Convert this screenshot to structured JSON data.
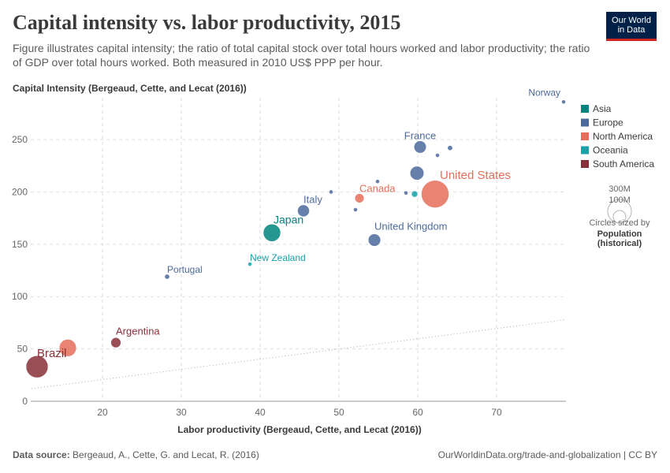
{
  "header": {
    "title": "Capital intensity vs. labor productivity, 2015",
    "subtitle": "Figure illustrates capital intensity; the ratio of total capital stock over total hours worked and labor productivity; the ratio of GDP over total hours worked. Both measured in 2010 US$ PPP per hour.",
    "logo_line1": "Our World",
    "logo_line2": "in Data"
  },
  "footer": {
    "source_label": "Data source:",
    "source_text": "Bergeaud, A., Cette, G. and Lecat, R. (2016)",
    "license": "OurWorldinData.org/trade-and-globalization | CC BY"
  },
  "chart_data": {
    "type": "scatter",
    "xlabel": "Labor productivity (Bergeaud, Cette, and Lecat (2016))",
    "ylabel": "Capital Intensity (Bergeaud, Cette, and Lecat (2016))",
    "xlim": [
      10.9,
      78.8
    ],
    "ylim": [
      0,
      290
    ],
    "xticks": [
      20,
      30,
      40,
      50,
      60,
      70
    ],
    "yticks": [
      0,
      50,
      100,
      150,
      200,
      250
    ],
    "grid": true,
    "legend_position": "right",
    "regions": [
      {
        "name": "Asia",
        "color": "#00847e"
      },
      {
        "name": "Europe",
        "color": "#4c6a9c"
      },
      {
        "name": "North America",
        "color": "#e56e5a"
      },
      {
        "name": "Oceania",
        "color": "#18a1a7"
      },
      {
        "name": "South America",
        "color": "#883039"
      }
    ],
    "size_legend": {
      "large_label": "300M",
      "small_label": "100M",
      "note": "Circles sized by",
      "bold_line1": "Population",
      "bold_line2": "(historical)"
    },
    "points": [
      {
        "label": "Norway",
        "x": 78.5,
        "y": 286,
        "pop": 5,
        "region": "Europe"
      },
      {
        "label": "France",
        "x": 60.3,
        "y": 243,
        "pop": 64,
        "region": "Europe"
      },
      {
        "label": "",
        "x": 64.1,
        "y": 242,
        "pop": 11,
        "region": "Europe"
      },
      {
        "label": "",
        "x": 62.5,
        "y": 235,
        "pop": 5,
        "region": "Europe"
      },
      {
        "label": "United States",
        "x": 62.2,
        "y": 198,
        "pop": 320,
        "region": "North America"
      },
      {
        "label": "",
        "x": 59.9,
        "y": 218,
        "pop": 81,
        "region": "Europe"
      },
      {
        "label": "",
        "x": 59.6,
        "y": 198,
        "pop": 17,
        "region": "Oceania"
      },
      {
        "label": "",
        "x": 58.5,
        "y": 199,
        "pop": 2,
        "region": "Europe"
      },
      {
        "label": "",
        "x": 54.9,
        "y": 210,
        "pop": 4,
        "region": "Europe"
      },
      {
        "label": "Canada",
        "x": 52.6,
        "y": 194,
        "pop": 36,
        "region": "North America"
      },
      {
        "label": "",
        "x": 49.0,
        "y": 200,
        "pop": 2,
        "region": "Europe"
      },
      {
        "label": "",
        "x": 52.1,
        "y": 183,
        "pop": 5,
        "region": "Europe"
      },
      {
        "label": "United Kingdom",
        "x": 54.5,
        "y": 154,
        "pop": 65,
        "region": "Europe"
      },
      {
        "label": "Italy",
        "x": 45.5,
        "y": 182,
        "pop": 60,
        "region": "Europe"
      },
      {
        "label": "Japan",
        "x": 41.5,
        "y": 161,
        "pop": 127,
        "region": "Asia"
      },
      {
        "label": "New Zealand",
        "x": 38.7,
        "y": 131,
        "pop": 4.6,
        "region": "Oceania"
      },
      {
        "label": "Portugal",
        "x": 28.2,
        "y": 119,
        "pop": 10.4,
        "region": "Europe"
      },
      {
        "label": "Argentina",
        "x": 21.7,
        "y": 56,
        "pop": 43,
        "region": "South America"
      },
      {
        "label": "",
        "x": 15.6,
        "y": 51,
        "pop": 125,
        "region": "North America"
      },
      {
        "label": "Brazil",
        "x": 11.7,
        "y": 33,
        "pop": 205,
        "region": "South America"
      }
    ],
    "reference_line": {
      "x": [
        11.0,
        78.8
      ],
      "y": [
        12,
        78
      ]
    }
  }
}
